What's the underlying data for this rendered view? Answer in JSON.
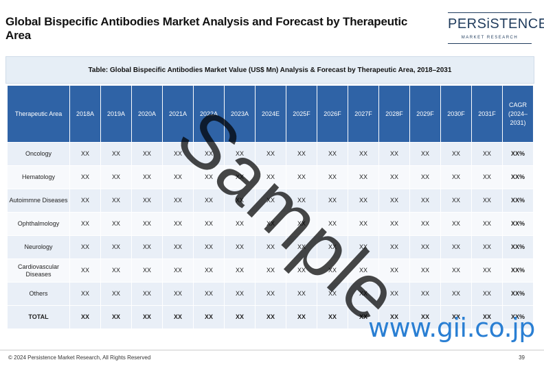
{
  "title": "Global Bispecific Antibodies Market Analysis and Forecast by Therapeutic Area",
  "logo": {
    "name": "PERSiSTENCE",
    "tagline": "MARKET RESEARCH"
  },
  "table": {
    "caption": "Table: Global Bispecific Antibodies Market Value (US$ Mn) Analysis & Forecast by Therapeutic Area, 2018–2031",
    "columns": [
      "Therapeutic Area",
      "2018A",
      "2019A",
      "2020A",
      "2021A",
      "2022A",
      "2023A",
      "2024E",
      "2025F",
      "2026F",
      "2027F",
      "2028F",
      "2029F",
      "2030F",
      "2031F",
      "CAGR (2024–2031)"
    ],
    "rows": [
      {
        "label": "Oncology",
        "values": [
          "XX",
          "XX",
          "XX",
          "XX",
          "XX",
          "XX",
          "XX",
          "XX",
          "XX",
          "XX",
          "XX",
          "XX",
          "XX",
          "XX"
        ],
        "cagr": "XX%"
      },
      {
        "label": "Hematology",
        "values": [
          "XX",
          "XX",
          "XX",
          "XX",
          "XX",
          "XX",
          "XX",
          "XX",
          "XX",
          "XX",
          "XX",
          "XX",
          "XX",
          "XX"
        ],
        "cagr": "XX%"
      },
      {
        "label": "Autoimmne Diseases",
        "values": [
          "XX",
          "XX",
          "XX",
          "XX",
          "XX",
          "XX",
          "XX",
          "XX",
          "XX",
          "XX",
          "XX",
          "XX",
          "XX",
          "XX"
        ],
        "cagr": "XX%"
      },
      {
        "label": "Ophthalmology",
        "values": [
          "XX",
          "XX",
          "XX",
          "XX",
          "XX",
          "XX",
          "XX",
          "XX",
          "XX",
          "XX",
          "XX",
          "XX",
          "XX",
          "XX"
        ],
        "cagr": "XX%"
      },
      {
        "label": "Neurology",
        "values": [
          "XX",
          "XX",
          "XX",
          "XX",
          "XX",
          "XX",
          "XX",
          "XX",
          "XX",
          "XX",
          "XX",
          "XX",
          "XX",
          "XX"
        ],
        "cagr": "XX%"
      },
      {
        "label": "Cardiovascular Diseases",
        "values": [
          "XX",
          "XX",
          "XX",
          "XX",
          "XX",
          "XX",
          "XX",
          "XX",
          "XX",
          "XX",
          "XX",
          "XX",
          "XX",
          "XX"
        ],
        "cagr": "XX%"
      },
      {
        "label": "Others",
        "values": [
          "XX",
          "XX",
          "XX",
          "XX",
          "XX",
          "XX",
          "XX",
          "XX",
          "XX",
          "XX",
          "XX",
          "XX",
          "XX",
          "XX"
        ],
        "cagr": "XX%"
      }
    ],
    "total": {
      "label": "TOTAL",
      "values": [
        "XX",
        "XX",
        "XX",
        "XX",
        "XX",
        "XX",
        "XX",
        "XX",
        "XX",
        "XX",
        "XX",
        "XX",
        "XX",
        "XX"
      ],
      "cagr": "XX%"
    }
  },
  "watermark": "Sample",
  "site_watermark": "www.gii.co.jp",
  "footer": {
    "copyright": "© 2024 Persistence Market Research, All Rights Reserved",
    "page": "39"
  },
  "colors": {
    "header_bg": "#2f63a6",
    "caption_bg": "#e6eef6",
    "row_alt": "#e9eff7",
    "gii_blue": "#2a7fd3"
  }
}
